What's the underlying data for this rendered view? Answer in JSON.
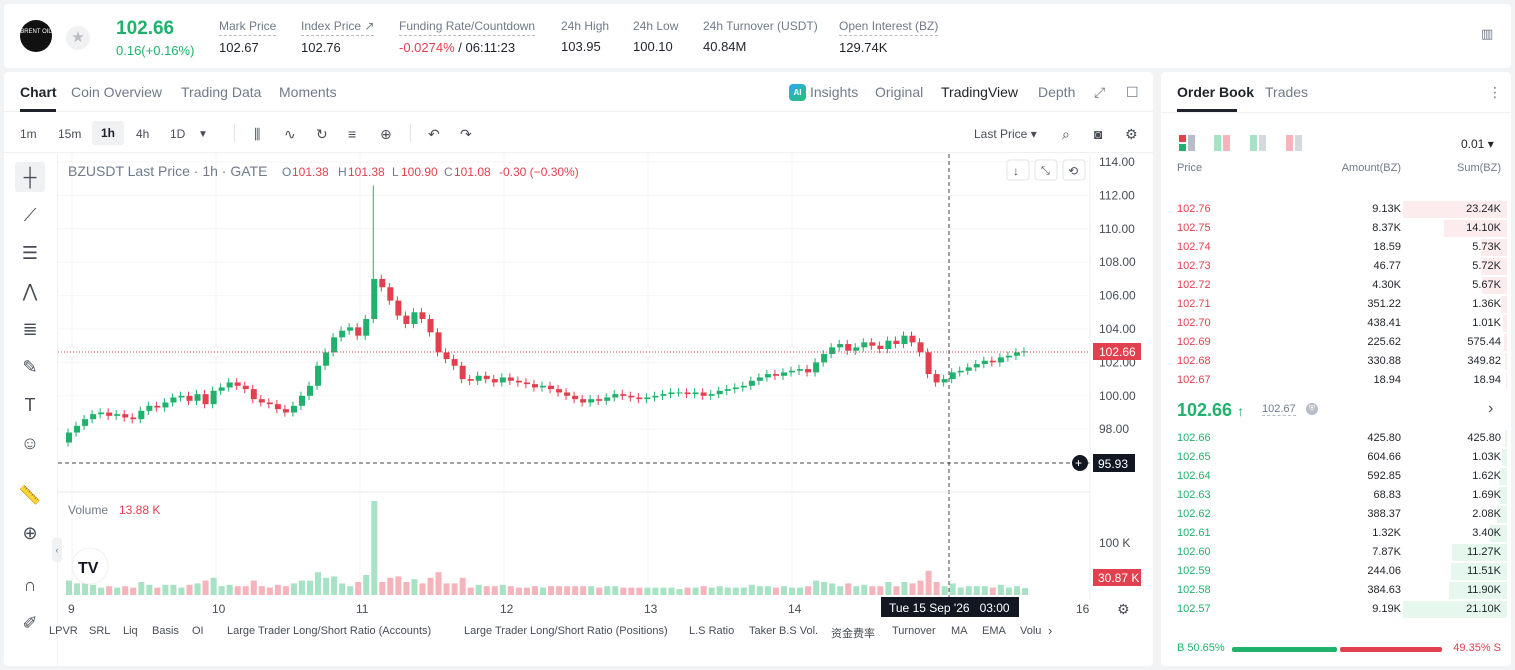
{
  "header": {
    "logo_text": "BRENT OIL",
    "last_price": "102.66",
    "change": "0.16(+0.16%)",
    "stats": [
      {
        "label": "Mark Price",
        "value": "102.67"
      },
      {
        "label": "Index Price ↗",
        "value": "102.76"
      },
      {
        "label": "Funding Rate/Countdown",
        "value_neg": "-0.0274%",
        "value": " / 06:11:23"
      },
      {
        "label": "24h High",
        "value": "103.95"
      },
      {
        "label": "24h Low",
        "value": "100.10"
      },
      {
        "label": "24h Turnover (USDT)",
        "value": "40.84M"
      },
      {
        "label": "Open Interest (BZ)",
        "value": "129.74K"
      }
    ]
  },
  "chart_tabs": [
    "Chart",
    "Coin Overview",
    "Trading Data",
    "Moments"
  ],
  "chart_right_tabs": {
    "insights": "Insights",
    "original": "Original",
    "tradingview": "TradingView",
    "depth": "Depth",
    "ai": "AI"
  },
  "timeframes": [
    "1m",
    "15m",
    "1h",
    "4h",
    "1D"
  ],
  "last_price_select": "Last Price",
  "legend": {
    "symbol": "BZUSDT Last Price · 1h · GATE",
    "o_label": "O",
    "o": "101.38",
    "h_label": "H",
    "h": "101.38",
    "l_label": "L",
    "l": "100.90",
    "c_label": "C",
    "c": "101.08",
    "chg": "-0.30 (−0.30%)"
  },
  "volume_legend": {
    "label": "Volume",
    "value": "13.88 K"
  },
  "price_tag": "102.66",
  "cursor_price": "95.93",
  "volume_tag": "30.87 K",
  "volume_axis_label": "100 K",
  "crosshair_time": "Tue 15 Sep '26   03:00",
  "x_ticks": [
    "9",
    "10",
    "11",
    "12",
    "13",
    "14",
    "16"
  ],
  "y_ticks": [
    "114.00",
    "112.00",
    "110.00",
    "108.00",
    "106.00",
    "104.00",
    "102.00",
    "100.00",
    "98.00"
  ],
  "indicators": [
    "LPVR",
    "SRL",
    "Liq",
    "Basis",
    "OI",
    "Large Trader Long/Short Ratio (Accounts)",
    "Large Trader Long/Short Ratio (Positions)",
    "L.S Ratio",
    "Taker B.S Vol.",
    "资金费率",
    "Turnover",
    "MA",
    "EMA",
    "Volu"
  ],
  "orderbook": {
    "tabs": [
      "Order Book",
      "Trades"
    ],
    "precision": "0.01",
    "headers": {
      "price": "Price",
      "amount": "Amount(BZ)",
      "sum": "Sum(BZ)"
    },
    "asks": [
      {
        "price": "102.76",
        "amount": "9.13K",
        "sum": "23.24K",
        "depth": 1.0
      },
      {
        "price": "102.75",
        "amount": "8.37K",
        "sum": "14.10K",
        "depth": 0.61
      },
      {
        "price": "102.74",
        "amount": "18.59",
        "sum": "5.73K",
        "depth": 0.25
      },
      {
        "price": "102.73",
        "amount": "46.77",
        "sum": "5.72K",
        "depth": 0.25
      },
      {
        "price": "102.72",
        "amount": "4.30K",
        "sum": "5.67K",
        "depth": 0.24
      },
      {
        "price": "102.71",
        "amount": "351.22",
        "sum": "1.36K",
        "depth": 0.06
      },
      {
        "price": "102.70",
        "amount": "438.41",
        "sum": "1.01K",
        "depth": 0.04
      },
      {
        "price": "102.69",
        "amount": "225.62",
        "sum": "575.44",
        "depth": 0.025
      },
      {
        "price": "102.68",
        "amount": "330.88",
        "sum": "349.82",
        "depth": 0.015
      },
      {
        "price": "102.67",
        "amount": "18.94",
        "sum": "18.94",
        "depth": 0.001
      }
    ],
    "mid_price": "102.66",
    "mid_arrow": "↑",
    "mid_mark": "102.67",
    "bids": [
      {
        "price": "102.66",
        "amount": "425.80",
        "sum": "425.80",
        "depth": 0.02
      },
      {
        "price": "102.65",
        "amount": "604.66",
        "sum": "1.03K",
        "depth": 0.05
      },
      {
        "price": "102.64",
        "amount": "592.85",
        "sum": "1.62K",
        "depth": 0.08
      },
      {
        "price": "102.63",
        "amount": "68.83",
        "sum": "1.69K",
        "depth": 0.08
      },
      {
        "price": "102.62",
        "amount": "388.37",
        "sum": "2.08K",
        "depth": 0.1
      },
      {
        "price": "102.61",
        "amount": "1.32K",
        "sum": "3.40K",
        "depth": 0.16
      },
      {
        "price": "102.60",
        "amount": "7.87K",
        "sum": "11.27K",
        "depth": 0.53
      },
      {
        "price": "102.59",
        "amount": "244.06",
        "sum": "11.51K",
        "depth": 0.54
      },
      {
        "price": "102.58",
        "amount": "384.63",
        "sum": "11.90K",
        "depth": 0.56
      },
      {
        "price": "102.57",
        "amount": "9.19K",
        "sum": "21.10K",
        "depth": 1.0
      }
    ],
    "buy_ratio": "B 50.65%",
    "sell_ratio": "49.35% S"
  }
}
